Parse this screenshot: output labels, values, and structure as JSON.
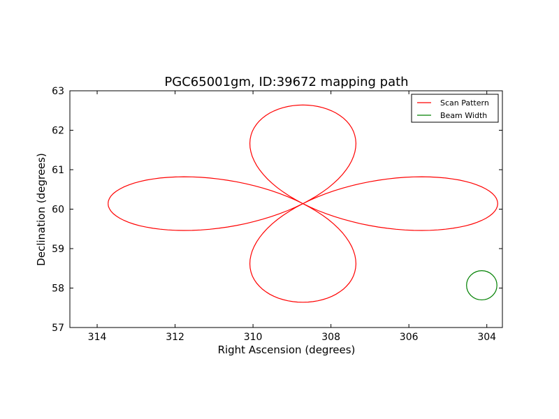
{
  "chart_data": {
    "type": "line",
    "title": "PGC65001gm, ID:39672 mapping path",
    "xlabel": "Right Ascension (degrees)",
    "ylabel": "Declination (degrees)",
    "xlim": [
      314.7,
      303.6
    ],
    "ylim": [
      57,
      63
    ],
    "x_inverted": true,
    "xticks": [
      314,
      312,
      310,
      308,
      306,
      304
    ],
    "yticks": [
      57,
      58,
      59,
      60,
      61,
      62,
      63
    ],
    "grid": false,
    "legend_position": "top-right",
    "center": [
      308.72,
      60.14
    ],
    "series": [
      {
        "name": "Scan Pattern",
        "color": "#ff0000",
        "style": "rose-curve",
        "x_amplitude": 5.0,
        "y_amplitude": 2.5,
        "start_ra": 313.8,
        "start_dec": 60.14,
        "points": 240
      },
      {
        "name": "Beam Width",
        "color": "#008000",
        "style": "circle",
        "center": [
          304.13,
          58.07
        ],
        "radius_ra": 0.39,
        "radius_dec": 0.37
      }
    ]
  }
}
